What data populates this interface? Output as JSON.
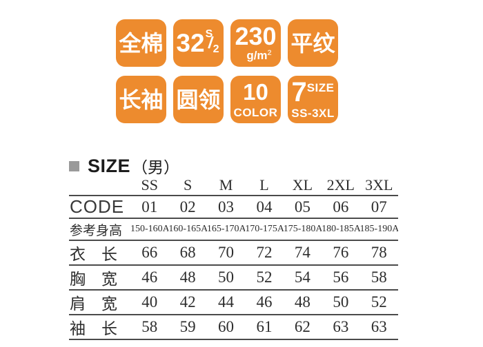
{
  "colors": {
    "badge_orange": "#ED8B2E",
    "badge_text": "#ffffff",
    "table_line": "#4a4a4a",
    "text_dark": "#2d2d2d",
    "bullet_gray": "#9a9a9a"
  },
  "badges": {
    "cotton": {
      "label": "全棉"
    },
    "yarn_count": {
      "number": "32",
      "sup": "S",
      "slash": "/",
      "sub": "2"
    },
    "weight": {
      "number": "230",
      "unit": "g/m",
      "unit_sup": "2"
    },
    "weave": {
      "label": "平纹"
    },
    "sleeve": {
      "label": "长袖"
    },
    "collar": {
      "label": "圆领"
    },
    "color_count": {
      "number": "10",
      "label": "COLOR"
    },
    "size_count": {
      "number": "7",
      "label": "SIZE",
      "range": "SS-3XL"
    }
  },
  "size_section": {
    "title": "SIZE",
    "gender": "（男）",
    "columns": [
      "SS",
      "S",
      "M",
      "L",
      "XL",
      "2XL",
      "3XL"
    ],
    "rows": [
      {
        "label": "CODE",
        "values": [
          "01",
          "02",
          "03",
          "04",
          "05",
          "06",
          "07"
        ]
      },
      {
        "label": "参考身高",
        "values": [
          "150-160A",
          "160-165A",
          "165-170A",
          "170-175A",
          "175-180A",
          "180-185A",
          "185-190A"
        ]
      },
      {
        "label": "衣　长",
        "values": [
          "66",
          "68",
          "70",
          "72",
          "74",
          "76",
          "78"
        ]
      },
      {
        "label": "胸　宽",
        "values": [
          "46",
          "48",
          "50",
          "52",
          "54",
          "56",
          "58"
        ]
      },
      {
        "label": "肩　宽",
        "values": [
          "40",
          "42",
          "44",
          "46",
          "48",
          "50",
          "52"
        ]
      },
      {
        "label": "袖　长",
        "values": [
          "58",
          "59",
          "60",
          "61",
          "62",
          "63",
          "63"
        ]
      }
    ]
  }
}
